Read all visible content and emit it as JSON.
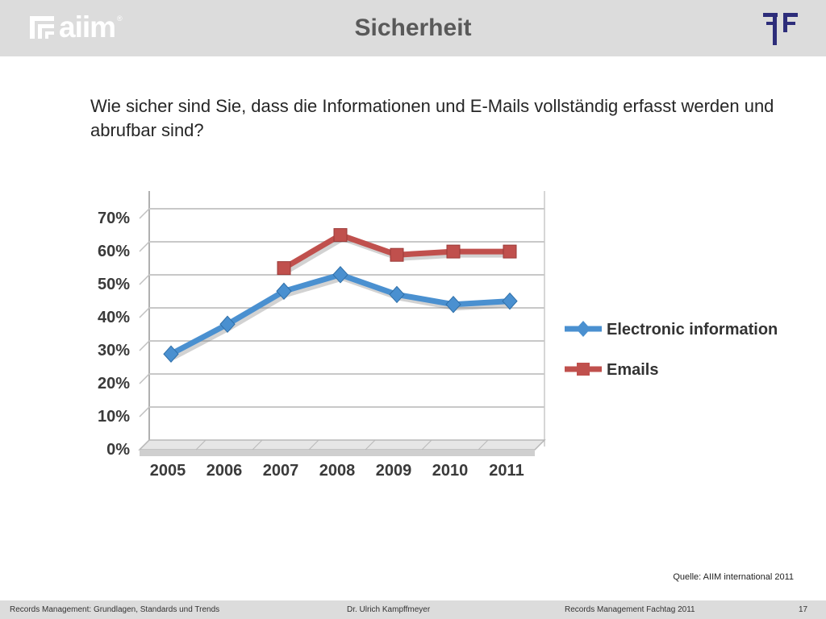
{
  "header": {
    "logo_text": "aiim",
    "logo_registered": "®",
    "title": "Sicherheit"
  },
  "question": "Wie sicher sind Sie, dass die Informationen und E-Mails vollständig erfasst werden und abrufbar sind?",
  "source": "Quelle: AIIM international 2011",
  "footer": {
    "left": "Records Management:  Grundlagen, Standards und Trends",
    "center": "Dr. Ulrich Kampffmeyer",
    "right": "Records Management Fachtag 2011",
    "page": "17"
  },
  "chart_data": {
    "type": "line",
    "title": "",
    "xlabel": "",
    "ylabel": "",
    "x": [
      "2005",
      "2006",
      "2007",
      "2008",
      "2009",
      "2010",
      "2011"
    ],
    "y_ticks": [
      "0%",
      "10%",
      "20%",
      "30%",
      "40%",
      "50%",
      "60%",
      "70%"
    ],
    "ylim": [
      0,
      70
    ],
    "grid": true,
    "legend_position": "right",
    "series": [
      {
        "name": "Electronic information",
        "color": "#4a90d0",
        "marker": "diamond",
        "values": [
          28,
          37,
          47,
          52,
          46,
          43,
          44
        ]
      },
      {
        "name": "Emails",
        "color": "#c0504d",
        "marker": "square",
        "values": [
          null,
          null,
          54,
          64,
          58,
          59,
          59
        ]
      }
    ]
  }
}
